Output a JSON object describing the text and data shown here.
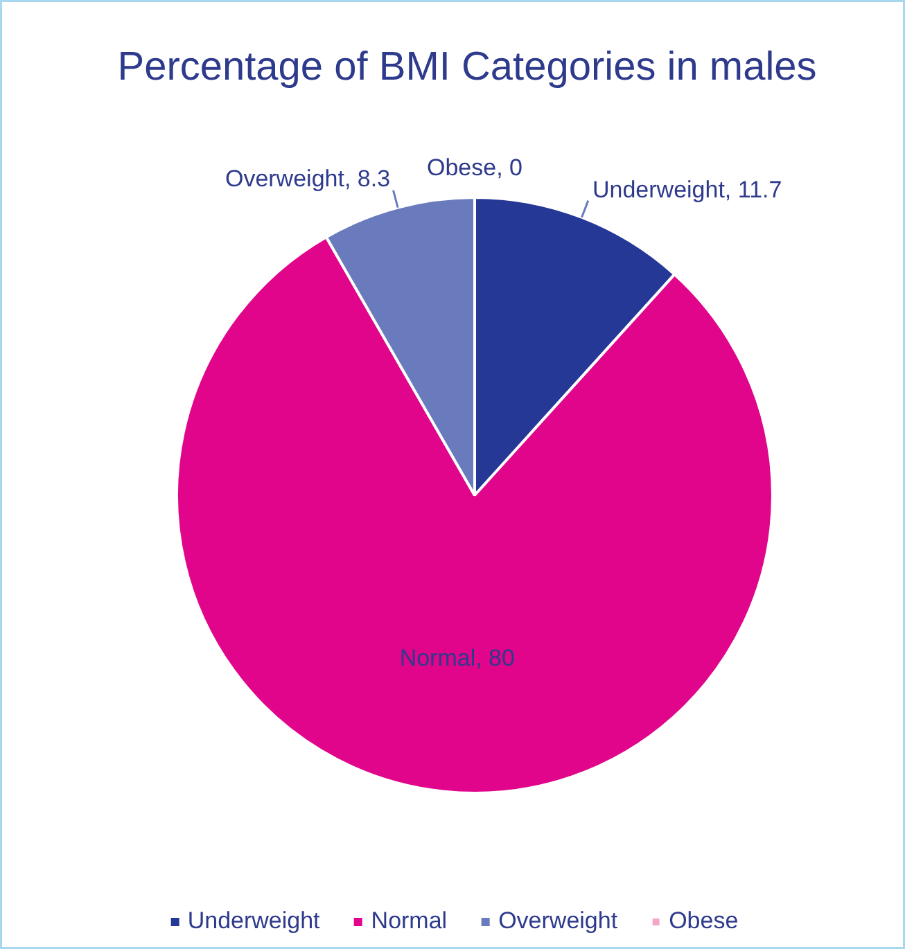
{
  "chart_data": {
    "type": "pie",
    "title": "Percentage of BMI Categories in males",
    "categories": [
      "Underweight",
      "Normal",
      "Overweight",
      "Obese"
    ],
    "values": [
      11.7,
      80,
      8.3,
      0
    ],
    "colors": [
      "#253896",
      "#e0058a",
      "#6a7bbd",
      "#f4a6c8"
    ],
    "value_labels": [
      "Underweight, 11.7",
      "Normal, 80",
      "Overweight, 8.3",
      "Obese, 0"
    ],
    "legend": "bottom"
  }
}
